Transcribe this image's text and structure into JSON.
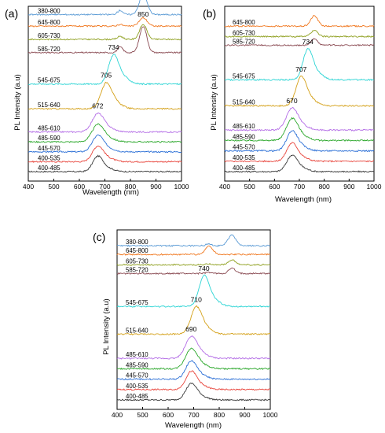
{
  "figure": {
    "xlabel": "Wavelength (nm)",
    "ylabel": "PL Intensity (a.u)"
  },
  "colors": {
    "400-485": "#3a3a3a",
    "400-535": "#e8453c",
    "445-570": "#2b6fd6",
    "485-590": "#2ca82c",
    "485-610": "#b46ee6",
    "515-640": "#d4a017",
    "545-675": "#2bd4d4",
    "585-720": "#8a4a52",
    "605-730": "#8fa020",
    "645-800": "#f07820",
    "380-800": "#5b9bd5"
  },
  "chart_data": [
    {
      "panel": "(a)",
      "type": "line",
      "xlabel": "Wavelength (nm)",
      "ylabel": "PL Intensity (a.u)",
      "xlim": [
        400,
        1000
      ],
      "xticks": [
        400,
        500,
        600,
        700,
        800,
        900,
        1000
      ],
      "series": [
        {
          "name": "400-485",
          "peak_nm": 672,
          "baseline": 0.0,
          "height": 0.9,
          "width": 28
        },
        {
          "name": "400-535",
          "peak_nm": 672,
          "baseline": 0.6,
          "height": 0.9,
          "width": 30
        },
        {
          "name": "445-570",
          "peak_nm": 672,
          "baseline": 1.2,
          "height": 0.95,
          "width": 30
        },
        {
          "name": "485-590",
          "peak_nm": 672,
          "baseline": 1.8,
          "height": 1.0,
          "width": 32
        },
        {
          "name": "485-610",
          "peak_nm": 672,
          "baseline": 2.4,
          "height": 1.05,
          "width": 32
        },
        {
          "name": "515-640",
          "peak_nm": 705,
          "baseline": 3.8,
          "height": 1.5,
          "width": 30
        },
        {
          "name": "545-675",
          "peak_nm": 734,
          "baseline": 5.3,
          "height": 1.7,
          "width": 28
        },
        {
          "name": "585-720",
          "peak_nm": 850,
          "baseline": 7.2,
          "height": 1.6,
          "width": 20
        },
        {
          "name": "605-730",
          "peak_nm": 850,
          "baseline": 8.0,
          "height": 0.9,
          "width": 20
        },
        {
          "name": "645-800",
          "peak_nm": 850,
          "baseline": 8.8,
          "height": 0.5,
          "width": 22
        },
        {
          "name": "380-800",
          "peak_nm": 850,
          "baseline": 9.5,
          "height": 1.2,
          "width": 22
        }
      ],
      "annotations": [
        "672",
        "705",
        "734",
        "850"
      ]
    },
    {
      "panel": "(b)",
      "type": "line",
      "xlabel": "Wavelength (nm)",
      "ylabel": "PL Intensity (a.u)",
      "xlim": [
        400,
        1000
      ],
      "xticks": [
        400,
        500,
        600,
        700,
        800,
        900,
        1000
      ],
      "series": [
        {
          "name": "400-485",
          "peak_nm": 670,
          "baseline": 0.0,
          "height": 0.9,
          "width": 30
        },
        {
          "name": "400-535",
          "peak_nm": 670,
          "baseline": 0.6,
          "height": 1.0,
          "width": 30
        },
        {
          "name": "445-570",
          "peak_nm": 670,
          "baseline": 1.2,
          "height": 1.1,
          "width": 30
        },
        {
          "name": "485-590",
          "peak_nm": 670,
          "baseline": 1.8,
          "height": 1.2,
          "width": 32
        },
        {
          "name": "485-610",
          "peak_nm": 670,
          "baseline": 2.4,
          "height": 1.2,
          "width": 32
        },
        {
          "name": "515-640",
          "peak_nm": 707,
          "baseline": 3.8,
          "height": 1.6,
          "width": 30
        },
        {
          "name": "545-675",
          "peak_nm": 734,
          "baseline": 5.3,
          "height": 1.7,
          "width": 28
        },
        {
          "name": "585-720",
          "peak_nm": 760,
          "baseline": 7.3,
          "height": 0.3,
          "width": 20
        },
        {
          "name": "605-730",
          "peak_nm": 760,
          "baseline": 7.8,
          "height": 0.3,
          "width": 20
        },
        {
          "name": "645-800",
          "peak_nm": 760,
          "baseline": 8.4,
          "height": 0.5,
          "width": 22
        }
      ],
      "annotations": [
        "670",
        "707",
        "734"
      ]
    },
    {
      "panel": "(c)",
      "type": "line",
      "xlabel": "Wavelength (nm)",
      "ylabel": "PL Intensity (a.u)",
      "xlim": [
        400,
        1000
      ],
      "xticks": [
        400,
        500,
        600,
        700,
        800,
        900,
        1000
      ],
      "series": [
        {
          "name": "400-485",
          "peak_nm": 690,
          "baseline": 0.0,
          "height": 0.9,
          "width": 30
        },
        {
          "name": "400-535",
          "peak_nm": 690,
          "baseline": 0.6,
          "height": 1.0,
          "width": 30
        },
        {
          "name": "445-570",
          "peak_nm": 690,
          "baseline": 1.2,
          "height": 1.0,
          "width": 30
        },
        {
          "name": "485-590",
          "peak_nm": 690,
          "baseline": 1.8,
          "height": 1.1,
          "width": 32
        },
        {
          "name": "485-610",
          "peak_nm": 690,
          "baseline": 2.4,
          "height": 1.2,
          "width": 32
        },
        {
          "name": "515-640",
          "peak_nm": 710,
          "baseline": 3.8,
          "height": 1.5,
          "width": 30
        },
        {
          "name": "545-675",
          "peak_nm": 740,
          "baseline": 5.4,
          "height": 1.7,
          "width": 28
        },
        {
          "name": "585-720",
          "peak_nm": 850,
          "baseline": 7.3,
          "height": 0.3,
          "width": 18
        },
        {
          "name": "605-730",
          "peak_nm": 850,
          "baseline": 7.8,
          "height": 0.3,
          "width": 18
        },
        {
          "name": "645-800",
          "peak_nm": 760,
          "baseline": 8.4,
          "height": 0.4,
          "width": 22
        },
        {
          "name": "380-800",
          "peak_nm": 850,
          "baseline": 8.9,
          "height": 0.6,
          "width": 22
        }
      ],
      "annotations": [
        "690",
        "710",
        "740"
      ]
    }
  ]
}
